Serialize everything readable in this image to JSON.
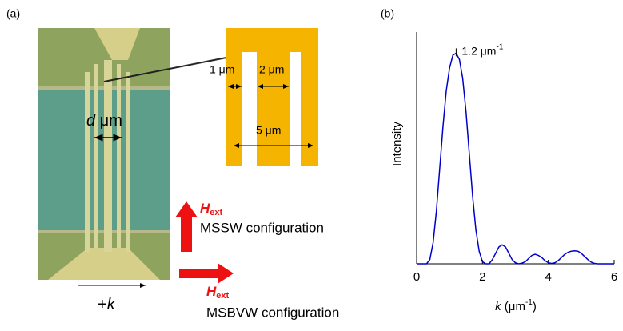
{
  "panel_a": {
    "label": "(a)",
    "dimensions": [
      "1 μm",
      "2 μm",
      "5 μm"
    ],
    "d_label": {
      "symbol": "d",
      "unit": " μm"
    },
    "wavevector": {
      "sign": "+",
      "symbol": "k"
    },
    "field": {
      "symbol": "H",
      "subscript": "ext"
    },
    "configurations": [
      "MSSW configuration",
      "MSBVW configuration"
    ]
  },
  "chart_data": {
    "type": "line",
    "label": "(b)",
    "ylabel": "Intensity",
    "xlabel": {
      "symbol": "k",
      "unit": " (μm",
      "sup": "-1",
      "close": ")"
    },
    "annotation": {
      "text": "1.2 μm",
      "sup": "-1",
      "x": 1.2
    },
    "color": "#0000cc",
    "x": [
      0,
      0.3,
      0.4,
      0.5,
      0.6,
      0.7,
      0.8,
      0.9,
      1.0,
      1.1,
      1.2,
      1.3,
      1.4,
      1.5,
      1.6,
      1.7,
      1.8,
      1.9,
      2.0,
      2.1,
      2.2,
      2.3,
      2.4,
      2.5,
      2.6,
      2.7,
      2.8,
      2.9,
      3.0,
      3.1,
      3.2,
      3.3,
      3.4,
      3.5,
      3.6,
      3.7,
      3.8,
      3.9,
      4.0,
      4.1,
      4.2,
      4.3,
      4.4,
      4.5,
      4.6,
      4.7,
      4.8,
      4.9,
      5.0,
      5.1,
      5.2,
      5.3,
      5.4,
      5.5,
      6.0
    ],
    "values": [
      0,
      0,
      0.02,
      0.1,
      0.25,
      0.45,
      0.65,
      0.82,
      0.93,
      0.99,
      1.0,
      0.97,
      0.88,
      0.72,
      0.52,
      0.32,
      0.16,
      0.06,
      0.01,
      0,
      0,
      0.02,
      0.05,
      0.08,
      0.09,
      0.08,
      0.05,
      0.02,
      0.005,
      0,
      0.003,
      0.01,
      0.025,
      0.04,
      0.045,
      0.04,
      0.03,
      0.015,
      0.005,
      0.002,
      0.005,
      0.015,
      0.03,
      0.045,
      0.055,
      0.06,
      0.062,
      0.06,
      0.05,
      0.035,
      0.02,
      0.008,
      0.002,
      0,
      0
    ],
    "xlim": [
      0,
      6
    ],
    "ylim": [
      0,
      1.1
    ],
    "xticks": [
      0,
      2,
      4,
      6
    ]
  }
}
